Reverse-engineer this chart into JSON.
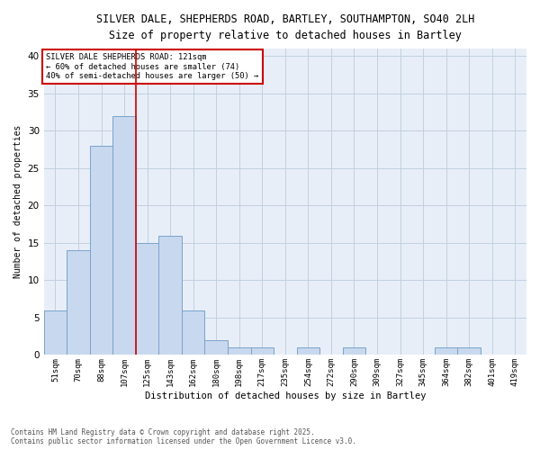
{
  "title_line1": "SILVER DALE, SHEPHERDS ROAD, BARTLEY, SOUTHAMPTON, SO40 2LH",
  "title_line2": "Size of property relative to detached houses in Bartley",
  "xlabel": "Distribution of detached houses by size in Bartley",
  "ylabel": "Number of detached properties",
  "categories": [
    "51sqm",
    "70sqm",
    "88sqm",
    "107sqm",
    "125sqm",
    "143sqm",
    "162sqm",
    "180sqm",
    "198sqm",
    "217sqm",
    "235sqm",
    "254sqm",
    "272sqm",
    "290sqm",
    "309sqm",
    "327sqm",
    "345sqm",
    "364sqm",
    "382sqm",
    "401sqm",
    "419sqm"
  ],
  "values": [
    6,
    14,
    28,
    32,
    15,
    16,
    6,
    2,
    1,
    1,
    0,
    1,
    0,
    1,
    0,
    0,
    0,
    1,
    1,
    0,
    0
  ],
  "bar_color": "#c8d8ee",
  "bar_edge_color": "#7aa4cc",
  "vline_color": "#cc0000",
  "vline_x_index": 3.5,
  "annotation_line1": "SILVER DALE SHEPHERDS ROAD: 121sqm",
  "annotation_line2": "← 60% of detached houses are smaller (74)",
  "annotation_line3": "40% of semi-detached houses are larger (50) →",
  "annotation_box_color": "#ffffff",
  "annotation_box_edge": "#cc0000",
  "ylim": [
    0,
    41
  ],
  "yticks": [
    0,
    5,
    10,
    15,
    20,
    25,
    30,
    35,
    40
  ],
  "grid_color": "#c0d0e0",
  "background_color": "#e8eef8",
  "footer_line1": "Contains HM Land Registry data © Crown copyright and database right 2025.",
  "footer_line2": "Contains public sector information licensed under the Open Government Licence v3.0."
}
